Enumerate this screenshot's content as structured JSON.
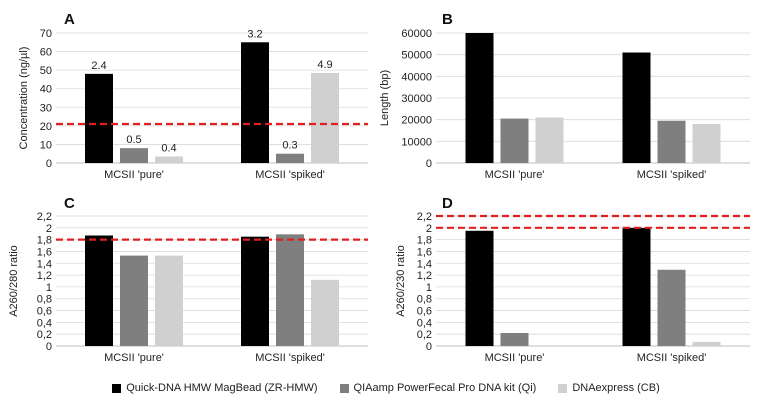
{
  "chart_data": [
    {
      "type": "bar",
      "panel_label": "A",
      "categories": [
        "MCSII 'pure'",
        "MCSII 'spiked'"
      ],
      "series": [
        {
          "name": "Quick-DNA HMW MagBead (ZR-HMW)",
          "values": [
            48,
            65
          ]
        },
        {
          "name": "QIAamp PowerFecal Pro DNA kit (Qi)",
          "values": [
            8,
            5
          ]
        },
        {
          "name": "DNAexpress (CB)",
          "values": [
            3.5,
            48.5
          ]
        }
      ],
      "data_labels": [
        [
          "2.4",
          "3.2"
        ],
        [
          "0.5",
          "0.3"
        ],
        [
          "0.4",
          "4.9"
        ]
      ],
      "ylabel": "Concentration (ng/µl)",
      "ylim": [
        0,
        70
      ],
      "yticks": [
        "0",
        "10",
        "20",
        "30",
        "40",
        "50",
        "60",
        "70"
      ],
      "reference_lines": [
        21
      ]
    },
    {
      "type": "bar",
      "panel_label": "B",
      "categories": [
        "MCSII 'pure'",
        "MCSII 'spiked'"
      ],
      "series": [
        {
          "name": "Quick-DNA HMW MagBead (ZR-HMW)",
          "values": [
            60000,
            51000
          ]
        },
        {
          "name": "QIAamp PowerFecal Pro DNA kit (Qi)",
          "values": [
            20500,
            19500
          ]
        },
        {
          "name": "DNAexpress (CB)",
          "values": [
            21000,
            18000
          ]
        }
      ],
      "ylabel": "Length (bp)",
      "ylim": [
        0,
        60000
      ],
      "yticks": [
        "0",
        "10000",
        "20000",
        "30000",
        "40000",
        "50000",
        "60000"
      ],
      "reference_lines": []
    },
    {
      "type": "bar",
      "panel_label": "C",
      "categories": [
        "MCSII 'pure'",
        "MCSII 'spiked'"
      ],
      "series": [
        {
          "name": "Quick-DNA HMW MagBead (ZR-HMW)",
          "values": [
            1.87,
            1.85
          ]
        },
        {
          "name": "QIAamp PowerFecal Pro DNA kit (Qi)",
          "values": [
            1.53,
            1.89
          ]
        },
        {
          "name": "DNAexpress (CB)",
          "values": [
            1.53,
            1.12
          ]
        }
      ],
      "ylabel": "A260/280 ratio",
      "ylim": [
        0,
        2.2
      ],
      "yticks": [
        "0",
        "0,2",
        "0,4",
        "0,6",
        "0,8",
        "1",
        "1,2",
        "1,4",
        "1,6",
        "1,8",
        "2",
        "2,2"
      ],
      "reference_lines": [
        1.8
      ]
    },
    {
      "type": "bar",
      "panel_label": "D",
      "categories": [
        "MCSII 'pure'",
        "MCSII 'spiked'"
      ],
      "series": [
        {
          "name": "Quick-DNA HMW MagBead (ZR-HMW)",
          "values": [
            1.95,
            2.0
          ]
        },
        {
          "name": "QIAamp PowerFecal Pro DNA kit (Qi)",
          "values": [
            0.22,
            1.29
          ]
        },
        {
          "name": "DNAexpress (CB)",
          "values": [
            0.0,
            0.07
          ]
        }
      ],
      "ylabel": "A260/230 ratio",
      "ylim": [
        0,
        2.2
      ],
      "yticks": [
        "0",
        "0,2",
        "0,4",
        "0,6",
        "0,8",
        "1",
        "1,2",
        "1,4",
        "1,6",
        "1,8",
        "2",
        "2,2"
      ],
      "reference_lines": [
        2.0,
        2.2
      ]
    }
  ],
  "legend": [
    {
      "label": "Quick-DNA HMW MagBead (ZR-HMW)",
      "color": "#000000"
    },
    {
      "label": "QIAamp PowerFecal Pro DNA kit (Qi)",
      "color": "#7f7f7f"
    },
    {
      "label": "DNAexpress (CB)",
      "color": "#d0d0d0"
    }
  ],
  "colors": {
    "series": [
      "#000000",
      "#7f7f7f",
      "#d0d0d0"
    ],
    "reference_line": "#e02020",
    "gridline": "#d9d9d9",
    "axis": "#bfbfbf",
    "text": "#222222"
  }
}
